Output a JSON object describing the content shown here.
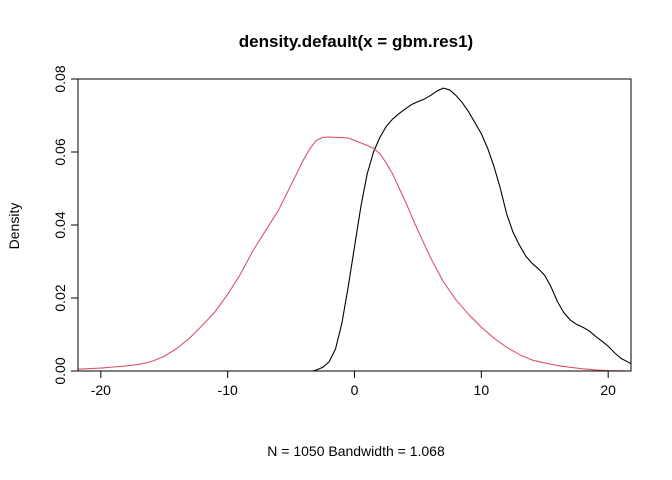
{
  "chart_data": {
    "type": "line",
    "title": "density.default(x = gbm.res1)",
    "xlabel": "N = 1050   Bandwidth = 1.068",
    "ylabel": "Density",
    "xlim": [
      -21.8,
      21.8
    ],
    "ylim": [
      0,
      0.08
    ],
    "grid": false,
    "baseline": {
      "y": 0,
      "color": "#bebebe"
    },
    "x_ticks": [
      -20,
      -10,
      0,
      10,
      20
    ],
    "y_ticks": [
      0.0,
      0.02,
      0.04,
      0.06,
      0.08
    ],
    "x_tick_labels": [
      "-20",
      "-10",
      "0",
      "10",
      "20"
    ],
    "y_tick_labels": [
      "0.00",
      "0.02",
      "0.04",
      "0.06",
      "0.08"
    ],
    "series": [
      {
        "color": "#000000",
        "x": [
          -3.3,
          -3.0,
          -2.5,
          -2.0,
          -1.5,
          -1.0,
          -0.5,
          0,
          0.5,
          1.0,
          1.5,
          2.0,
          2.5,
          3.0,
          3.5,
          4.0,
          4.5,
          5.0,
          5.5,
          6.0,
          6.5,
          7.0,
          7.5,
          8.0,
          8.5,
          9.0,
          9.5,
          10.0,
          10.5,
          11.0,
          11.5,
          12.0,
          12.5,
          13.0,
          13.5,
          14.0,
          14.5,
          15.0,
          15.5,
          16.0,
          16.5,
          17.0,
          17.5,
          18.0,
          18.5,
          19.0,
          19.5,
          20.0,
          20.5,
          21.0,
          21.8
        ],
        "y": [
          0.0,
          0.0003,
          0.001,
          0.0025,
          0.006,
          0.013,
          0.023,
          0.034,
          0.045,
          0.054,
          0.06,
          0.064,
          0.067,
          0.069,
          0.0705,
          0.0718,
          0.073,
          0.0738,
          0.0745,
          0.0755,
          0.0767,
          0.0775,
          0.077,
          0.0755,
          0.0735,
          0.071,
          0.068,
          0.065,
          0.061,
          0.056,
          0.05,
          0.043,
          0.038,
          0.0345,
          0.0315,
          0.0295,
          0.028,
          0.0262,
          0.023,
          0.019,
          0.016,
          0.014,
          0.0128,
          0.012,
          0.011,
          0.0095,
          0.0082,
          0.0068,
          0.005,
          0.0035,
          0.002
        ]
      },
      {
        "color": "#df536b",
        "x": [
          -21.8,
          -20,
          -19,
          -18,
          -17,
          -16,
          -15,
          -14,
          -13,
          -12,
          -11,
          -10,
          -9,
          -8,
          -7,
          -6,
          -5,
          -4,
          -3.5,
          -3,
          -2.5,
          -2,
          -1.5,
          -1,
          -0.5,
          0,
          0.5,
          1,
          1.5,
          2,
          2.5,
          3,
          4,
          5,
          6,
          7,
          8,
          9,
          10,
          11,
          12,
          13,
          14,
          15,
          16,
          17,
          18,
          19,
          20,
          21.8
        ],
        "y": [
          0.0005,
          0.0008,
          0.0011,
          0.0014,
          0.0018,
          0.0026,
          0.004,
          0.0062,
          0.009,
          0.0125,
          0.0162,
          0.021,
          0.0265,
          0.033,
          0.0385,
          0.044,
          0.051,
          0.058,
          0.061,
          0.0632,
          0.064,
          0.0641,
          0.064,
          0.064,
          0.0638,
          0.0632,
          0.0625,
          0.0618,
          0.061,
          0.0595,
          0.057,
          0.054,
          0.0465,
          0.0385,
          0.031,
          0.0245,
          0.0195,
          0.0155,
          0.012,
          0.009,
          0.0065,
          0.0045,
          0.003,
          0.0022,
          0.0015,
          0.001,
          0.0006,
          0.0003,
          0.0001,
          0.0
        ]
      }
    ]
  }
}
